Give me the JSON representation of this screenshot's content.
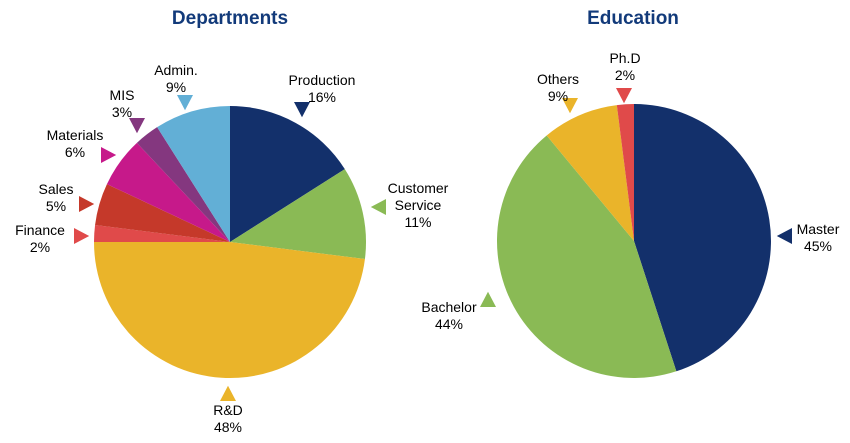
{
  "chart_data": [
    {
      "type": "pie",
      "title": "Departments",
      "slices": [
        {
          "label": [
            "Production"
          ],
          "value": 16,
          "value_label": "16%",
          "color": "#13306b"
        },
        {
          "label": [
            "Customer",
            "Service"
          ],
          "value": 11,
          "value_label": "11%",
          "color": "#8aba55"
        },
        {
          "label": [
            "R&D"
          ],
          "value": 48,
          "value_label": "48%",
          "color": "#eab42a"
        },
        {
          "label": [
            "Finance"
          ],
          "value": 2,
          "value_label": "2%",
          "color": "#e04a4a"
        },
        {
          "label": [
            "Sales"
          ],
          "value": 5,
          "value_label": "5%",
          "color": "#c5392a"
        },
        {
          "label": [
            "Materials"
          ],
          "value": 6,
          "value_label": "6%",
          "color": "#c6198a"
        },
        {
          "label": [
            "MIS"
          ],
          "value": 3,
          "value_label": "3%",
          "color": "#84377f"
        },
        {
          "label": [
            "Admin."
          ],
          "value": 9,
          "value_label": "9%",
          "color": "#62afd6"
        }
      ]
    },
    {
      "type": "pie",
      "title": "Education",
      "slices": [
        {
          "label": [
            "Master"
          ],
          "value": 45,
          "value_label": "45%",
          "color": "#13306b"
        },
        {
          "label": [
            "Bachelor"
          ],
          "value": 44,
          "value_label": "44%",
          "color": "#8aba55"
        },
        {
          "label": [
            "Others"
          ],
          "value": 9,
          "value_label": "9%",
          "color": "#eab42a"
        },
        {
          "label": [
            "Ph.D"
          ],
          "value": 2,
          "value_label": "2%",
          "color": "#e04a4a"
        }
      ]
    }
  ]
}
